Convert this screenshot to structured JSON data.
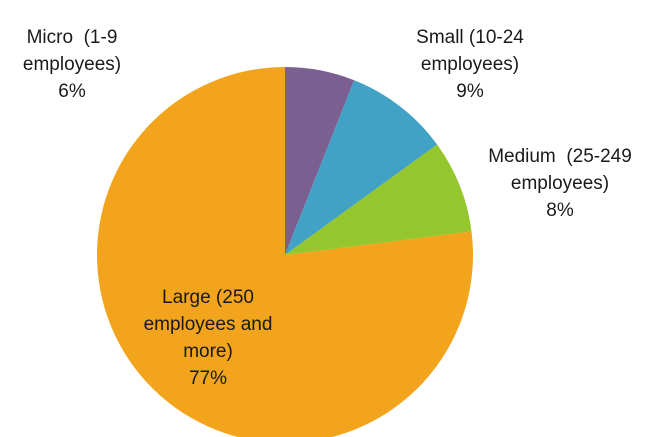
{
  "chart_data": {
    "type": "pie",
    "title": "",
    "legend": "none",
    "start_angle": "12 o'clock, clockwise",
    "slices": [
      {
        "label_lines": [
          "Micro  (1-9",
          "employees)"
        ],
        "percent_label": "6%",
        "value": 6,
        "color": "#7c5f91"
      },
      {
        "label_lines": [
          "Small (10-24",
          "employees)"
        ],
        "percent_label": "9%",
        "value": 9,
        "color": "#41a2c5"
      },
      {
        "label_lines": [
          "Medium  (25-249",
          "employees)"
        ],
        "percent_label": "8%",
        "value": 8,
        "color": "#93c72d"
      },
      {
        "label_lines": [
          "Large (250",
          "employees and",
          "more)"
        ],
        "percent_label": "77%",
        "value": 77,
        "color": "#f2a41c"
      }
    ]
  }
}
